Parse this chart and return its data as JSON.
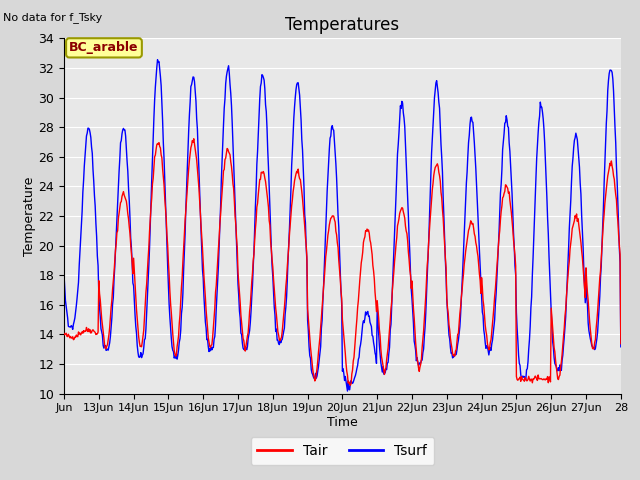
{
  "title": "Temperatures",
  "xlabel": "Time",
  "ylabel": "Temperature",
  "top_left_text": "No data for f_Tsky",
  "box_label": "BC_arable",
  "xlim_days": [
    12.0,
    28.0
  ],
  "ylim": [
    10,
    34
  ],
  "yticks": [
    10,
    12,
    14,
    16,
    18,
    20,
    22,
    24,
    26,
    28,
    30,
    32,
    34
  ],
  "xtick_labels": [
    "Jun",
    "13Jun",
    "14Jun",
    "15Jun",
    "16Jun",
    "17Jun",
    "18Jun",
    "19Jun",
    "20Jun",
    "21Jun",
    "22Jun",
    "23Jun",
    "24Jun",
    "25Jun",
    "26Jun",
    "27Jun",
    "28"
  ],
  "xtick_positions": [
    12,
    13,
    14,
    15,
    16,
    17,
    18,
    19,
    20,
    21,
    22,
    23,
    24,
    25,
    26,
    27,
    28
  ],
  "background_color": "#d8d8d8",
  "plot_bg_color": "#e8e8e8",
  "grid_color": "#ffffff",
  "tair_color": "#ff0000",
  "tsurf_color": "#0000ff",
  "line_width": 1.0,
  "legend_tair": "Tair",
  "legend_tsurf": "Tsurf",
  "figsize": [
    6.4,
    4.8
  ],
  "dpi": 100,
  "daily_params": {
    "12": {
      "tair_min": 13.8,
      "tair_max": 14.3,
      "tsurf_min": 14.5,
      "tsurf_max": 28.0
    },
    "13": {
      "tair_min": 13.0,
      "tair_max": 23.5,
      "tsurf_min": 13.0,
      "tsurf_max": 28.0
    },
    "14": {
      "tair_min": 13.0,
      "tair_max": 27.0,
      "tsurf_min": 12.5,
      "tsurf_max": 32.5
    },
    "15": {
      "tair_min": 12.5,
      "tair_max": 27.0,
      "tsurf_min": 12.5,
      "tsurf_max": 31.5
    },
    "16": {
      "tair_min": 13.0,
      "tair_max": 26.5,
      "tsurf_min": 13.0,
      "tsurf_max": 32.0
    },
    "17": {
      "tair_min": 13.0,
      "tair_max": 25.0,
      "tsurf_min": 13.0,
      "tsurf_max": 31.5
    },
    "18": {
      "tair_min": 13.5,
      "tair_max": 25.0,
      "tsurf_min": 13.5,
      "tsurf_max": 31.0
    },
    "19": {
      "tair_min": 11.0,
      "tair_max": 22.0,
      "tsurf_min": 11.0,
      "tsurf_max": 28.0
    },
    "20": {
      "tair_min": 10.5,
      "tair_max": 21.0,
      "tsurf_min": 10.5,
      "tsurf_max": 15.5
    },
    "21": {
      "tair_min": 11.5,
      "tair_max": 22.5,
      "tsurf_min": 11.5,
      "tsurf_max": 29.5
    },
    "22": {
      "tair_min": 11.5,
      "tair_max": 25.5,
      "tsurf_min": 12.0,
      "tsurf_max": 31.0
    },
    "23": {
      "tair_min": 12.5,
      "tair_max": 21.5,
      "tsurf_min": 12.5,
      "tsurf_max": 28.5
    },
    "24": {
      "tair_min": 13.0,
      "tair_max": 24.0,
      "tsurf_min": 13.0,
      "tsurf_max": 28.5
    },
    "25": {
      "tair_min": 11.0,
      "tair_max": 11.0,
      "tsurf_min": 11.0,
      "tsurf_max": 29.5
    },
    "26": {
      "tair_min": 11.0,
      "tair_max": 22.0,
      "tsurf_min": 11.5,
      "tsurf_max": 27.5
    },
    "27": {
      "tair_min": 13.0,
      "tair_max": 25.5,
      "tsurf_min": 13.0,
      "tsurf_max": 32.0
    },
    "28": {
      "tair_min": 13.0,
      "tair_max": 14.0,
      "tsurf_min": 13.0,
      "tsurf_max": 14.0
    }
  }
}
